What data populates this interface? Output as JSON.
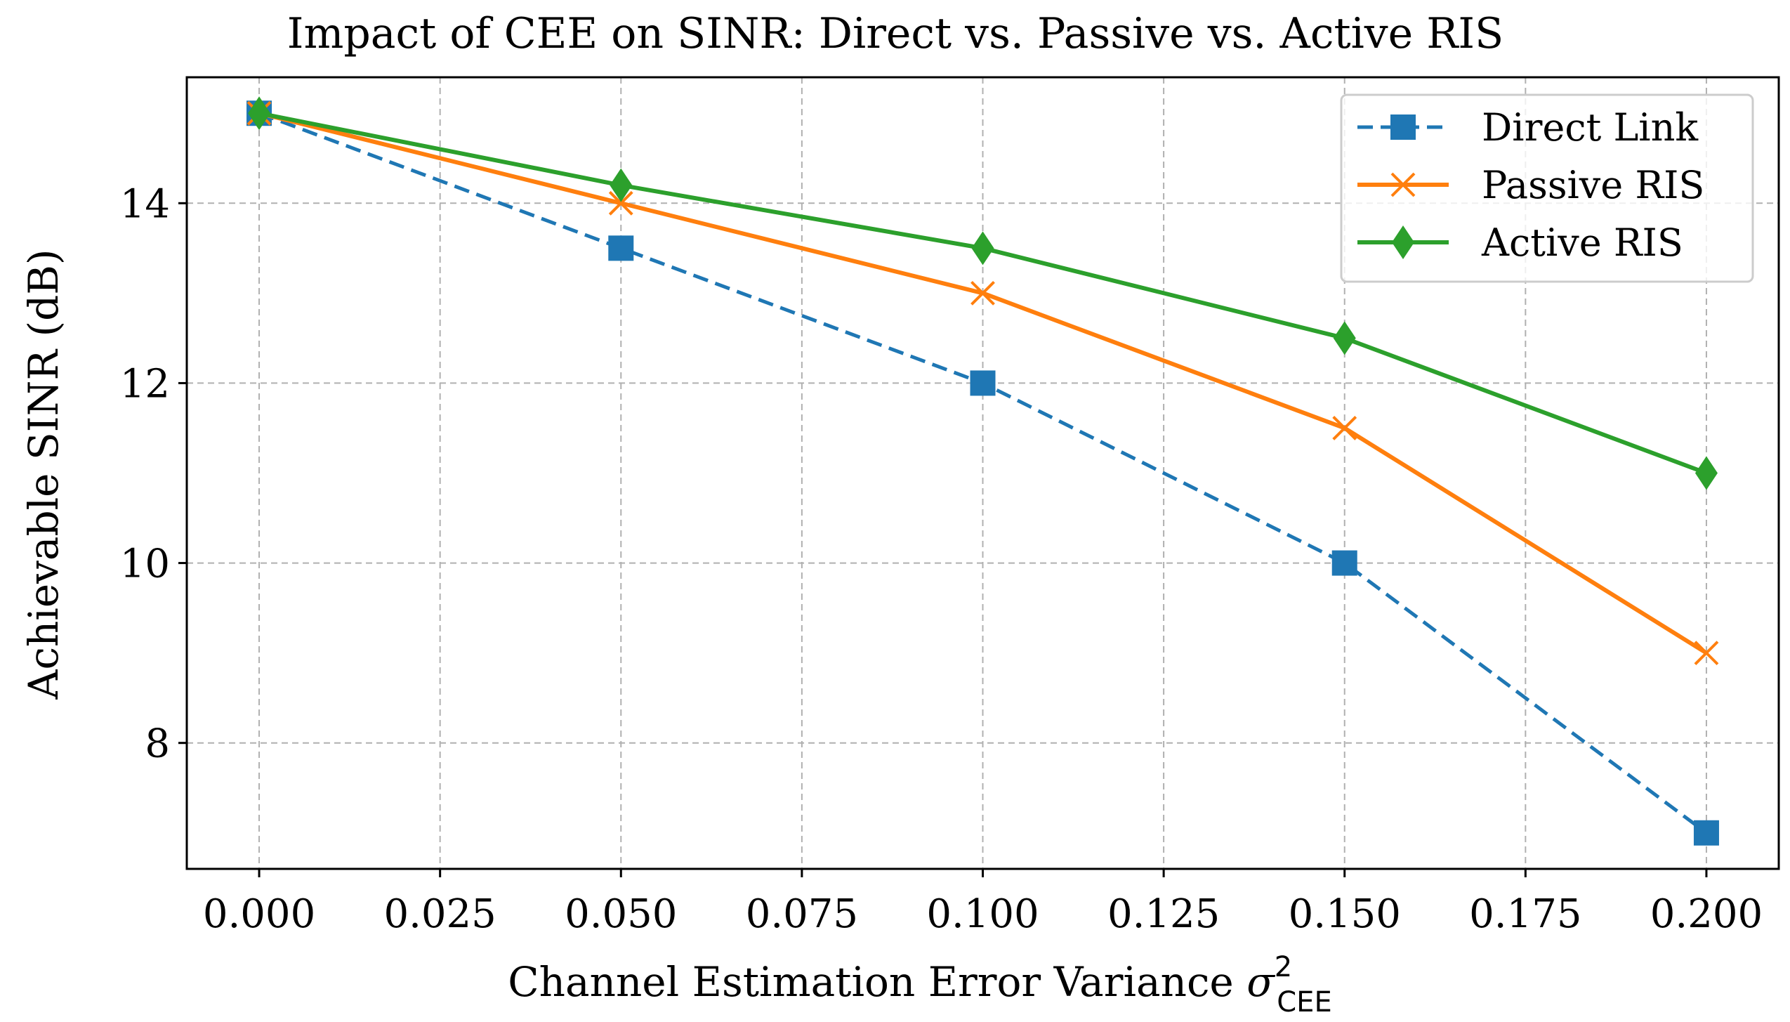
{
  "chart_data": {
    "type": "line",
    "title": "Impact of CEE on SINR: Direct vs. Passive vs. Active RIS",
    "xlabel_main": "Channel Estimation Error Variance ",
    "xlabel_symbol": "σ",
    "xlabel_superscript": "2",
    "xlabel_subscript": "CEE",
    "ylabel": "Achievable SINR (dB)",
    "xlim": [
      -0.01,
      0.21
    ],
    "ylim": [
      6.6,
      15.4
    ],
    "grid": true,
    "legend_position": "top-right",
    "x_ticks": [
      0.0,
      0.025,
      0.05,
      0.075,
      0.1,
      0.125,
      0.15,
      0.175,
      0.2
    ],
    "x_tick_labels": [
      "0.000",
      "0.025",
      "0.050",
      "0.075",
      "0.100",
      "0.125",
      "0.150",
      "0.175",
      "0.200"
    ],
    "y_ticks": [
      8,
      10,
      12,
      14
    ],
    "y_tick_labels": [
      "8",
      "10",
      "12",
      "14"
    ],
    "x": [
      0.0,
      0.05,
      0.1,
      0.15,
      0.2
    ],
    "series": [
      {
        "name": "Direct Link",
        "values": [
          15.0,
          13.5,
          12.0,
          10.0,
          7.0
        ],
        "color": "#1f77b4",
        "marker": "square",
        "dashed": true
      },
      {
        "name": "Passive RIS",
        "values": [
          15.0,
          14.0,
          13.0,
          11.5,
          9.0
        ],
        "color": "#ff7f0e",
        "marker": "x",
        "dashed": false
      },
      {
        "name": "Active RIS",
        "values": [
          15.0,
          14.2,
          13.5,
          12.5,
          11.0
        ],
        "color": "#2ca02c",
        "marker": "diamond",
        "dashed": false
      }
    ]
  }
}
